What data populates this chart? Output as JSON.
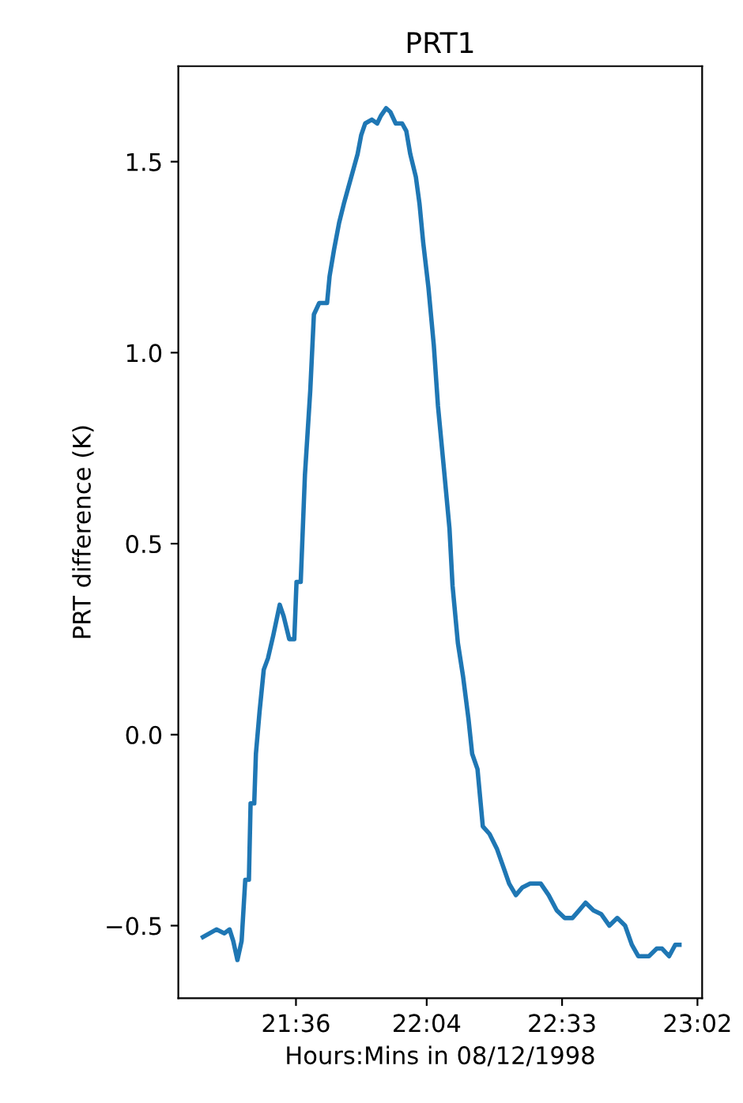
{
  "chart_data": {
    "type": "line",
    "title": "PRT1",
    "xlabel": "Hours:Mins in 08/12/1998",
    "ylabel": "PRT difference (K)",
    "xlim": [
      21.18,
      23.05
    ],
    "ylim": [
      -0.69,
      1.75
    ],
    "xticks": [
      {
        "value": 21.6,
        "label": "21:36"
      },
      {
        "value": 22.0667,
        "label": "22:04"
      },
      {
        "value": 22.55,
        "label": "22:33"
      },
      {
        "value": 23.0333,
        "label": "23:02"
      }
    ],
    "yticks": [
      {
        "value": -0.5,
        "label": "−0.5"
      },
      {
        "value": 0.0,
        "label": "0.0"
      },
      {
        "value": 0.5,
        "label": "0.5"
      },
      {
        "value": 1.0,
        "label": "1.0"
      },
      {
        "value": 1.5,
        "label": "1.5"
      }
    ],
    "grid": false,
    "series": [
      {
        "color": "#1f77b4",
        "x": [
          21.268,
          21.316,
          21.344,
          21.363,
          21.376,
          21.391,
          21.406,
          21.419,
          21.432,
          21.438,
          21.451,
          21.457,
          21.47,
          21.485,
          21.5,
          21.519,
          21.542,
          21.556,
          21.576,
          21.594,
          21.602,
          21.617,
          21.632,
          21.651,
          21.664,
          21.683,
          21.711,
          21.72,
          21.736,
          21.754,
          21.771,
          21.786,
          21.805,
          21.82,
          21.833,
          21.847,
          21.871,
          21.89,
          21.903,
          21.922,
          21.937,
          21.956,
          21.979,
          21.994,
          22.008,
          22.028,
          22.041,
          22.054,
          22.073,
          22.092,
          22.107,
          22.129,
          22.148,
          22.159,
          22.178,
          22.197,
          22.216,
          22.229,
          22.248,
          22.267,
          22.291,
          22.318,
          22.342,
          22.361,
          22.385,
          22.408,
          22.436,
          22.474,
          22.502,
          22.531,
          22.559,
          22.587,
          22.611,
          22.634,
          22.662,
          22.69,
          22.719,
          22.747,
          22.775,
          22.799,
          22.822,
          22.86,
          22.888,
          22.907,
          22.932,
          22.954,
          22.969
        ],
        "values": [
          -0.53,
          -0.51,
          -0.52,
          -0.51,
          -0.54,
          -0.59,
          -0.54,
          -0.38,
          -0.38,
          -0.18,
          -0.18,
          -0.05,
          0.06,
          0.17,
          0.2,
          0.26,
          0.34,
          0.31,
          0.25,
          0.25,
          0.4,
          0.4,
          0.68,
          0.9,
          1.1,
          1.13,
          1.13,
          1.2,
          1.27,
          1.34,
          1.39,
          1.43,
          1.48,
          1.52,
          1.57,
          1.6,
          1.61,
          1.6,
          1.62,
          1.64,
          1.63,
          1.6,
          1.6,
          1.58,
          1.52,
          1.46,
          1.39,
          1.29,
          1.17,
          1.02,
          0.86,
          0.69,
          0.54,
          0.39,
          0.24,
          0.15,
          0.04,
          -0.05,
          -0.09,
          -0.24,
          -0.26,
          -0.3,
          -0.35,
          -0.39,
          -0.42,
          -0.4,
          -0.39,
          -0.39,
          -0.42,
          -0.46,
          -0.48,
          -0.48,
          -0.46,
          -0.44,
          -0.46,
          -0.47,
          -0.5,
          -0.48,
          -0.5,
          -0.55,
          -0.58,
          -0.58,
          -0.56,
          -0.56,
          -0.58,
          -0.55,
          -0.55
        ]
      }
    ]
  }
}
